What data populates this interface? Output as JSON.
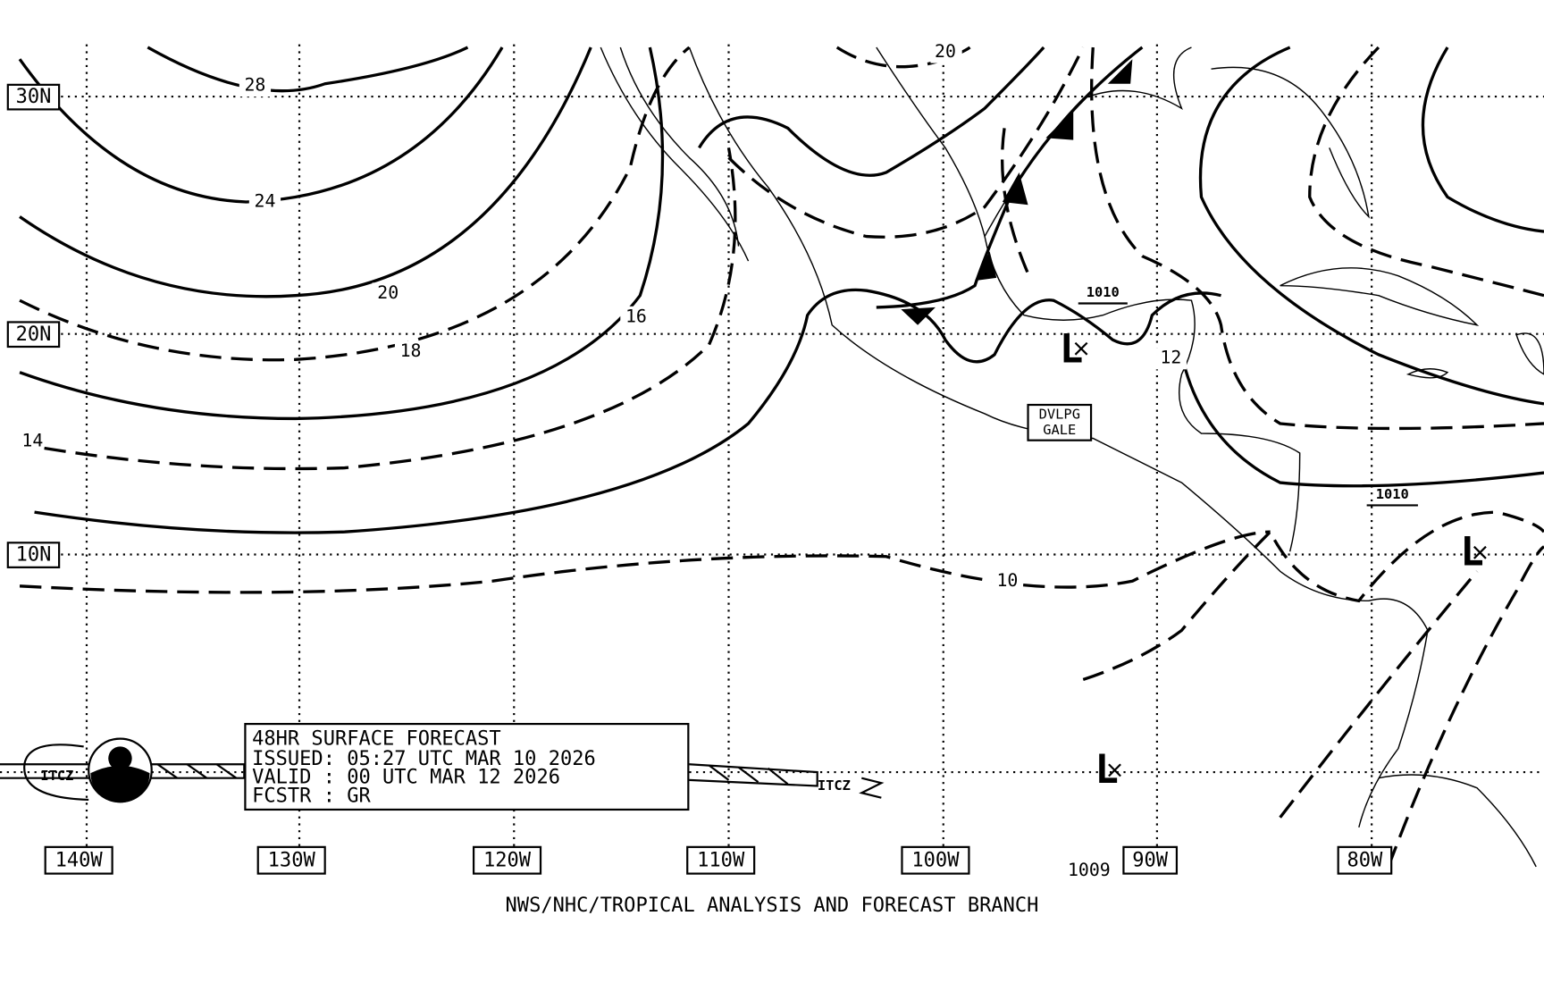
{
  "grid": {
    "lat_labels": [
      "30N",
      "20N",
      "10N"
    ],
    "lon_labels": [
      "140W",
      "130W",
      "120W",
      "110W",
      "100W",
      "90W",
      "80W"
    ]
  },
  "isobar_labels": [
    "28",
    "24",
    "20",
    "18",
    "16",
    "14",
    "20",
    "10",
    "12",
    "1010",
    "1010",
    "1009"
  ],
  "lows": [
    "L",
    "L",
    "L"
  ],
  "gale_warning": [
    "DVLPG",
    "GALE"
  ],
  "itcz": [
    "ITCZ",
    "ITCZ"
  ],
  "info_box": [
    "48HR SURFACE FORECAST",
    "ISSUED: 05:27 UTC MAR 10 2026",
    "VALID : 00 UTC MAR 12 2026",
    "FCSTR : GR"
  ],
  "footer": "NWS/NHC/TROPICAL ANALYSIS AND FORECAST BRANCH"
}
